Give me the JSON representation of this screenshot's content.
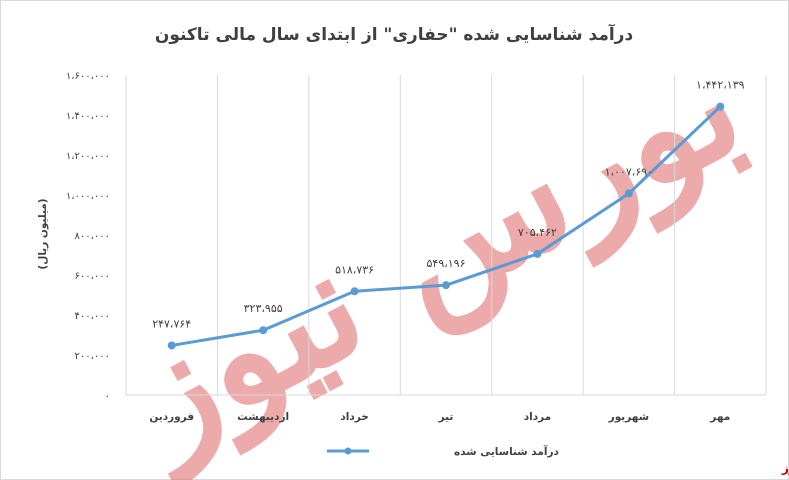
{
  "chart_data": {
    "type": "line",
    "title": "درآمد شناسایی شده \"حفاری\" از ابتدای سال مالی تاکنون",
    "ylabel": "(میلیون ریال)",
    "xlabel": "",
    "categories": [
      "فروردین",
      "اردیبهشت",
      "خرداد",
      "تیر",
      "مرداد",
      "شهریور",
      "مهر"
    ],
    "series": [
      {
        "name": "درآمد شناسایی شده",
        "values": [
          247764,
          323955,
          518736,
          549196,
          705462,
          1007690,
          1442139
        ],
        "labels": [
          "۲۴۷،۷۶۴",
          "۳۲۳،۹۵۵",
          "۵۱۸،۷۳۶",
          "۵۴۹،۱۹۶",
          "۷۰۵،۴۶۲",
          "۱،۰۰۷،۶۹۰",
          "۱،۴۴۲،۱۳۹"
        ],
        "color": "#5b9bd5"
      }
    ],
    "ylim": [
      0,
      1600000
    ],
    "yticks": [
      0,
      200000,
      400000,
      600000,
      800000,
      1000000,
      1200000,
      1400000,
      1600000
    ],
    "ytick_labels": [
      "۰",
      "۲۰۰،۰۰۰",
      "۴۰۰،۰۰۰",
      "۶۰۰،۰۰۰",
      "۸۰۰،۰۰۰",
      "۱،۰۰۰،۰۰۰",
      "۱،۲۰۰،۰۰۰",
      "۱،۴۰۰،۰۰۰",
      "۱،۶۰۰،۰۰۰"
    ],
    "grid": "vertical",
    "legend": "bottom"
  },
  "watermark": "بورس نیوز",
  "brand": "بورس نیوز",
  "colors": {
    "line": "#5b9bd5",
    "grid": "#d9d9d9",
    "watermark": "#e06666",
    "brand": "#c00000"
  }
}
